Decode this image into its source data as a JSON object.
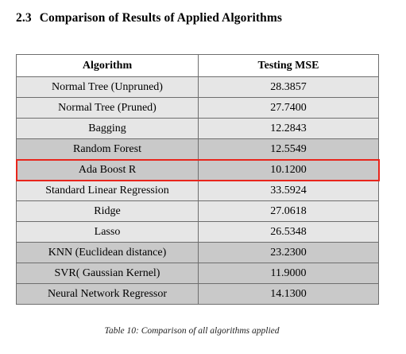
{
  "section": {
    "number": "2.3",
    "title": "Comparison of Results of Applied Algorithms"
  },
  "table": {
    "headers": [
      "Algorithm",
      "Testing MSE"
    ],
    "rows": [
      {
        "algorithm": "Normal Tree (Unpruned)",
        "mse": "28.3857",
        "shade": "light"
      },
      {
        "algorithm": "Normal Tree (Pruned)",
        "mse": "27.7400",
        "shade": "light"
      },
      {
        "algorithm": "Bagging",
        "mse": "12.2843",
        "shade": "light"
      },
      {
        "algorithm": "Random Forest",
        "mse": "12.5549",
        "shade": "dark"
      },
      {
        "algorithm": "Ada Boost R",
        "mse": "10.1200",
        "shade": "dark",
        "highlighted": true
      },
      {
        "algorithm": "Standard Linear Regression",
        "mse": "33.5924",
        "shade": "light"
      },
      {
        "algorithm": "Ridge",
        "mse": "27.0618",
        "shade": "light"
      },
      {
        "algorithm": "Lasso",
        "mse": "26.5348",
        "shade": "light"
      },
      {
        "algorithm": "KNN (Euclidean distance)",
        "mse": "23.2300",
        "shade": "dark"
      },
      {
        "algorithm": "SVR( Gaussian Kernel)",
        "mse": "11.9000",
        "shade": "dark"
      },
      {
        "algorithm": "Neural Network Regressor",
        "mse": "14.1300",
        "shade": "dark"
      }
    ],
    "highlight_color": "#e8251c",
    "light_row_color": "#e6e6e6",
    "dark_row_color": "#c9c9c9"
  },
  "caption": "Table 10: Comparison of all algorithms applied"
}
